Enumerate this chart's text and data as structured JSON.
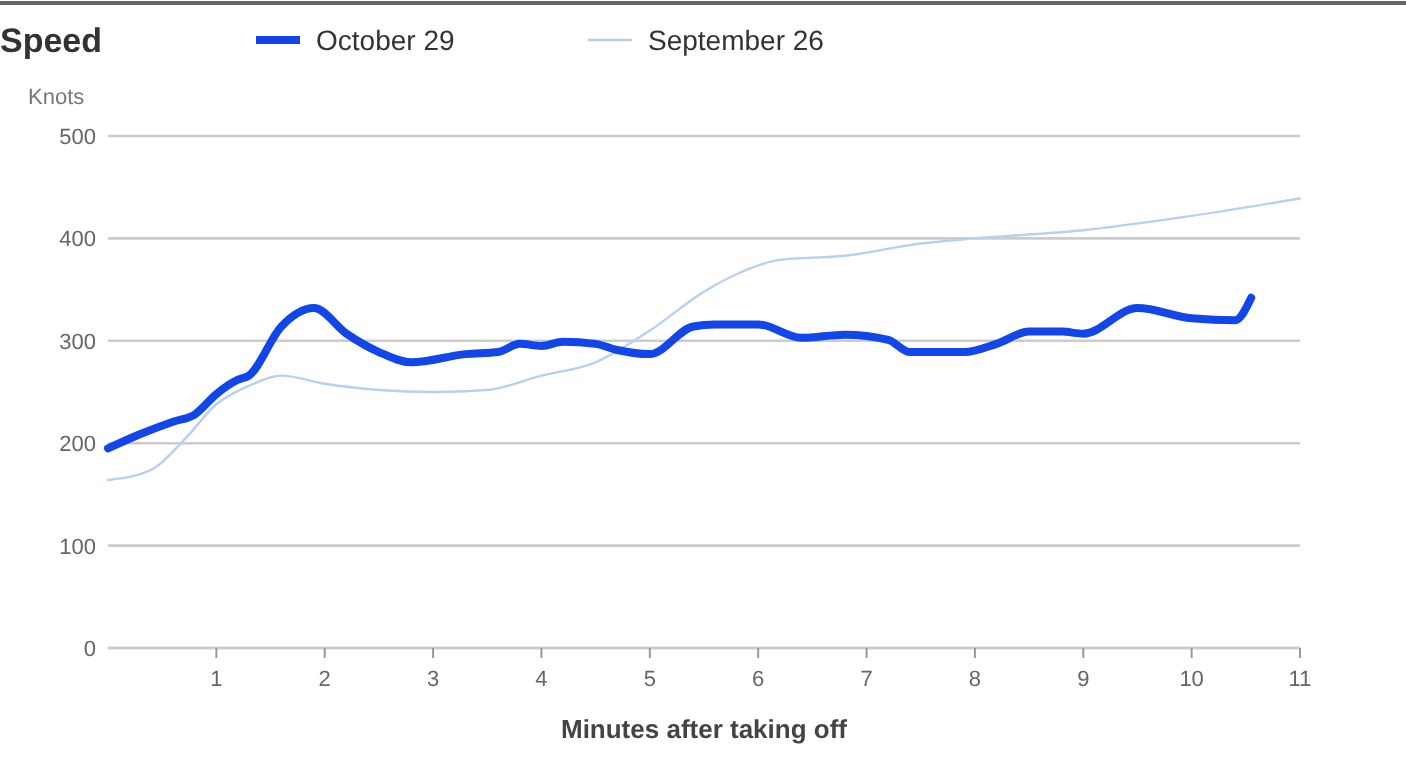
{
  "chart_data": {
    "type": "line",
    "title": "Speed",
    "xlabel": "Minutes after taking off",
    "ylabel": "Knots",
    "xlim": [
      0,
      11
    ],
    "xticks": [
      1,
      2,
      3,
      4,
      5,
      6,
      7,
      8,
      9,
      10,
      11
    ],
    "ylim": [
      0,
      500
    ],
    "yticks": [
      0,
      100,
      200,
      300,
      400,
      500
    ],
    "grid": "y",
    "legend": "top",
    "line_style": "solid",
    "marker": "none",
    "series": [
      {
        "name": "October 29",
        "color": "#1246e8",
        "x": [
          0,
          0.3,
          0.6,
          0.8,
          1,
          1.2,
          1.3,
          1.6,
          1.9,
          2.2,
          2.5,
          2.8,
          3.3,
          3.6,
          3.8,
          4,
          4.2,
          4.5,
          4.7,
          5,
          5.4,
          5.6,
          6,
          6.4,
          6.8,
          7.2,
          7.4,
          7.9,
          8.2,
          8.5,
          8.8,
          9,
          9.5,
          10,
          10.4,
          10.55
        ],
        "values": [
          195,
          209,
          221,
          228,
          248,
          262,
          266,
          314,
          332,
          307,
          289,
          279,
          287,
          289,
          297,
          295,
          299,
          297,
          291,
          287,
          314,
          316,
          316,
          303,
          306,
          301,
          289,
          289,
          297,
          309,
          309,
          307,
          332,
          322,
          320,
          342
        ]
      },
      {
        "name": "September 26",
        "color": "#b8d0f0",
        "x": [
          0,
          0.4,
          0.7,
          1,
          1.3,
          1.6,
          2,
          2.5,
          3,
          3.5,
          4,
          4.5,
          5,
          5.5,
          5.8,
          6.2,
          6.8,
          7.5,
          8,
          9,
          10,
          11
        ],
        "values": [
          164,
          174,
          203,
          238,
          256,
          266,
          258,
          252,
          250,
          252,
          266,
          279,
          310,
          348,
          365,
          379,
          383,
          395,
          400,
          408,
          422,
          439
        ]
      }
    ]
  }
}
